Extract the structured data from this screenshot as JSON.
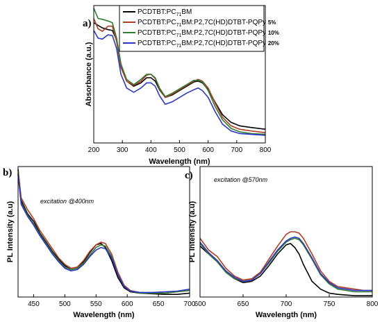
{
  "chart_data": [
    {
      "type": "line",
      "panel_label": "a)",
      "xlabel": "Wavelength (nm)",
      "ylabel": "Absorbance (a.u.)",
      "xlim": [
        200,
        800
      ],
      "ylim": [
        0,
        1.6
      ],
      "xticks": [
        "200",
        "300",
        "400",
        "500",
        "600",
        "700",
        "800"
      ],
      "legend_position": "top-right",
      "legend": [
        {
          "base": "PCDTBT:PC",
          "sub": "71",
          "rest": "BM",
          "suffix": ""
        },
        {
          "base": "PCDTBT:PC",
          "sub": "71",
          "rest": "BM:P2,7C(HD)DTBT-PQPy ",
          "suffix": "5%"
        },
        {
          "base": "PCDTBT:PC",
          "sub": "71",
          "rest": "BM:P2,7C(HD)DTBT-PQPy ",
          "suffix": "10%"
        },
        {
          "base": "PCDTBT:PC",
          "sub": "71",
          "rest": "BM:P2,7C(HD)DTBT-PQPy ",
          "suffix": "20%"
        }
      ],
      "series": [
        {
          "color": "#000000",
          "x": [
            200,
            215,
            230,
            250,
            265,
            280,
            295,
            315,
            340,
            365,
            385,
            400,
            415,
            430,
            450,
            475,
            500,
            525,
            550,
            565,
            580,
            600,
            625,
            650,
            680,
            710,
            750,
            800
          ],
          "y": [
            1.4,
            1.37,
            1.34,
            1.32,
            1.31,
            1.2,
            0.92,
            0.72,
            0.66,
            0.7,
            0.76,
            0.76,
            0.72,
            0.62,
            0.53,
            0.56,
            0.61,
            0.66,
            0.71,
            0.72,
            0.7,
            0.62,
            0.47,
            0.33,
            0.24,
            0.2,
            0.18,
            0.16
          ]
        },
        {
          "color": "#b23a1e",
          "x": [
            200,
            215,
            230,
            250,
            265,
            280,
            295,
            315,
            340,
            365,
            385,
            400,
            415,
            430,
            450,
            475,
            500,
            525,
            550,
            565,
            580,
            600,
            625,
            650,
            680,
            710,
            750,
            800
          ],
          "y": [
            1.45,
            1.33,
            1.3,
            1.36,
            1.36,
            1.18,
            0.88,
            0.72,
            0.67,
            0.72,
            0.79,
            0.8,
            0.75,
            0.63,
            0.53,
            0.57,
            0.62,
            0.67,
            0.72,
            0.74,
            0.72,
            0.64,
            0.46,
            0.3,
            0.2,
            0.16,
            0.14,
            0.12
          ]
        },
        {
          "color": "#2e7d32",
          "x": [
            200,
            215,
            230,
            250,
            265,
            280,
            295,
            315,
            340,
            365,
            385,
            400,
            415,
            430,
            450,
            475,
            500,
            525,
            550,
            565,
            580,
            600,
            625,
            650,
            680,
            710,
            750,
            800
          ],
          "y": [
            1.57,
            1.45,
            1.44,
            1.42,
            1.4,
            1.22,
            0.92,
            0.74,
            0.68,
            0.74,
            0.8,
            0.8,
            0.76,
            0.64,
            0.54,
            0.58,
            0.63,
            0.68,
            0.73,
            0.73,
            0.71,
            0.61,
            0.42,
            0.27,
            0.17,
            0.13,
            0.11,
            0.1
          ]
        },
        {
          "color": "#2b35c9",
          "x": [
            200,
            215,
            230,
            250,
            265,
            280,
            295,
            315,
            340,
            365,
            385,
            400,
            415,
            430,
            450,
            475,
            500,
            525,
            550,
            565,
            580,
            600,
            625,
            650,
            680,
            710,
            750,
            800
          ],
          "y": [
            1.31,
            1.22,
            1.21,
            1.26,
            1.25,
            1.1,
            0.8,
            0.64,
            0.59,
            0.64,
            0.7,
            0.7,
            0.66,
            0.55,
            0.45,
            0.48,
            0.53,
            0.58,
            0.62,
            0.64,
            0.61,
            0.53,
            0.36,
            0.22,
            0.14,
            0.11,
            0.1,
            0.09
          ]
        }
      ]
    },
    {
      "type": "line",
      "panel_label": "b)",
      "annotation": "excitation @400nm",
      "xlabel": "Wavelength (nm)",
      "ylabel": "PL Intensity (a.u)",
      "xlim": [
        425,
        700
      ],
      "ylim": [
        0,
        1.0
      ],
      "xticks": [
        "450",
        "500",
        "550",
        "600",
        "650",
        "700"
      ],
      "series": [
        {
          "color": "#000000",
          "x": [
            425,
            430,
            440,
            450,
            460,
            470,
            480,
            490,
            500,
            510,
            520,
            530,
            540,
            550,
            558,
            565,
            575,
            585,
            595,
            605,
            620,
            640,
            660,
            680,
            700
          ],
          "y": [
            0.98,
            0.74,
            0.64,
            0.58,
            0.49,
            0.42,
            0.35,
            0.29,
            0.24,
            0.21,
            0.22,
            0.27,
            0.34,
            0.4,
            0.41,
            0.38,
            0.28,
            0.15,
            0.07,
            0.04,
            0.03,
            0.025,
            0.02,
            0.02,
            0.03
          ]
        },
        {
          "color": "#b23a1e",
          "x": [
            425,
            430,
            440,
            450,
            460,
            470,
            480,
            490,
            500,
            510,
            520,
            530,
            540,
            550,
            558,
            565,
            575,
            585,
            595,
            605,
            620,
            640,
            660,
            680,
            700
          ],
          "y": [
            0.97,
            0.76,
            0.67,
            0.6,
            0.51,
            0.44,
            0.37,
            0.3,
            0.25,
            0.22,
            0.23,
            0.28,
            0.35,
            0.4,
            0.42,
            0.41,
            0.33,
            0.19,
            0.09,
            0.05,
            0.035,
            0.03,
            0.03,
            0.04,
            0.05
          ]
        },
        {
          "color": "#2e7d32",
          "x": [
            425,
            430,
            440,
            450,
            460,
            470,
            480,
            490,
            500,
            510,
            520,
            530,
            540,
            550,
            558,
            565,
            575,
            585,
            595,
            605,
            620,
            640,
            660,
            680,
            700
          ],
          "y": [
            0.95,
            0.72,
            0.63,
            0.56,
            0.48,
            0.41,
            0.34,
            0.28,
            0.23,
            0.21,
            0.22,
            0.26,
            0.32,
            0.38,
            0.4,
            0.39,
            0.31,
            0.17,
            0.08,
            0.045,
            0.03,
            0.03,
            0.03,
            0.04,
            0.05
          ]
        },
        {
          "color": "#2b35c9",
          "x": [
            425,
            430,
            440,
            450,
            460,
            470,
            480,
            490,
            500,
            510,
            520,
            530,
            540,
            550,
            558,
            565,
            575,
            585,
            595,
            605,
            620,
            640,
            660,
            680,
            700
          ],
          "y": [
            0.94,
            0.71,
            0.62,
            0.55,
            0.47,
            0.4,
            0.33,
            0.27,
            0.22,
            0.2,
            0.21,
            0.25,
            0.31,
            0.36,
            0.38,
            0.37,
            0.3,
            0.17,
            0.08,
            0.045,
            0.035,
            0.035,
            0.04,
            0.045,
            0.06
          ]
        }
      ]
    },
    {
      "type": "line",
      "panel_label": "c)",
      "annotation": "excitation @570nm",
      "xlabel": "Wavelength (nm)",
      "ylabel": "PL Intensity (a.u)",
      "xlim": [
        600,
        800
      ],
      "ylim": [
        0,
        1.0
      ],
      "xticks": [
        "600",
        "650",
        "700",
        "750",
        "800"
      ],
      "series": [
        {
          "color": "#000000",
          "x": [
            600,
            610,
            620,
            630,
            640,
            650,
            660,
            670,
            680,
            690,
            700,
            705,
            710,
            715,
            720,
            730,
            740,
            750,
            760,
            770,
            780,
            790,
            800
          ],
          "y": [
            0.39,
            0.33,
            0.27,
            0.19,
            0.14,
            0.11,
            0.12,
            0.16,
            0.24,
            0.33,
            0.4,
            0.41,
            0.38,
            0.33,
            0.25,
            0.12,
            0.06,
            0.03,
            0.02,
            0.015,
            0.01,
            0.01,
            0.01
          ]
        },
        {
          "color": "#b23a1e",
          "x": [
            600,
            610,
            620,
            630,
            640,
            650,
            660,
            670,
            680,
            690,
            700,
            705,
            710,
            715,
            720,
            730,
            740,
            750,
            760,
            770,
            780,
            790,
            800
          ],
          "y": [
            0.45,
            0.36,
            0.31,
            0.22,
            0.16,
            0.13,
            0.14,
            0.19,
            0.29,
            0.39,
            0.48,
            0.5,
            0.5,
            0.49,
            0.45,
            0.33,
            0.2,
            0.12,
            0.08,
            0.07,
            0.06,
            0.05,
            0.05
          ]
        },
        {
          "color": "#2e7d32",
          "x": [
            600,
            610,
            620,
            630,
            640,
            650,
            660,
            670,
            680,
            690,
            700,
            705,
            710,
            715,
            720,
            730,
            740,
            750,
            760,
            770,
            780,
            790,
            800
          ],
          "y": [
            0.41,
            0.33,
            0.27,
            0.19,
            0.14,
            0.12,
            0.13,
            0.18,
            0.26,
            0.35,
            0.42,
            0.44,
            0.45,
            0.44,
            0.4,
            0.29,
            0.17,
            0.1,
            0.06,
            0.05,
            0.04,
            0.04,
            0.04
          ]
        },
        {
          "color": "#2b35c9",
          "x": [
            600,
            610,
            620,
            630,
            640,
            650,
            660,
            670,
            680,
            690,
            700,
            705,
            710,
            715,
            720,
            730,
            740,
            750,
            760,
            770,
            780,
            790,
            800
          ],
          "y": [
            0.42,
            0.34,
            0.28,
            0.2,
            0.15,
            0.12,
            0.13,
            0.18,
            0.27,
            0.36,
            0.43,
            0.45,
            0.46,
            0.45,
            0.41,
            0.3,
            0.18,
            0.11,
            0.07,
            0.06,
            0.05,
            0.05,
            0.05
          ]
        }
      ]
    }
  ]
}
